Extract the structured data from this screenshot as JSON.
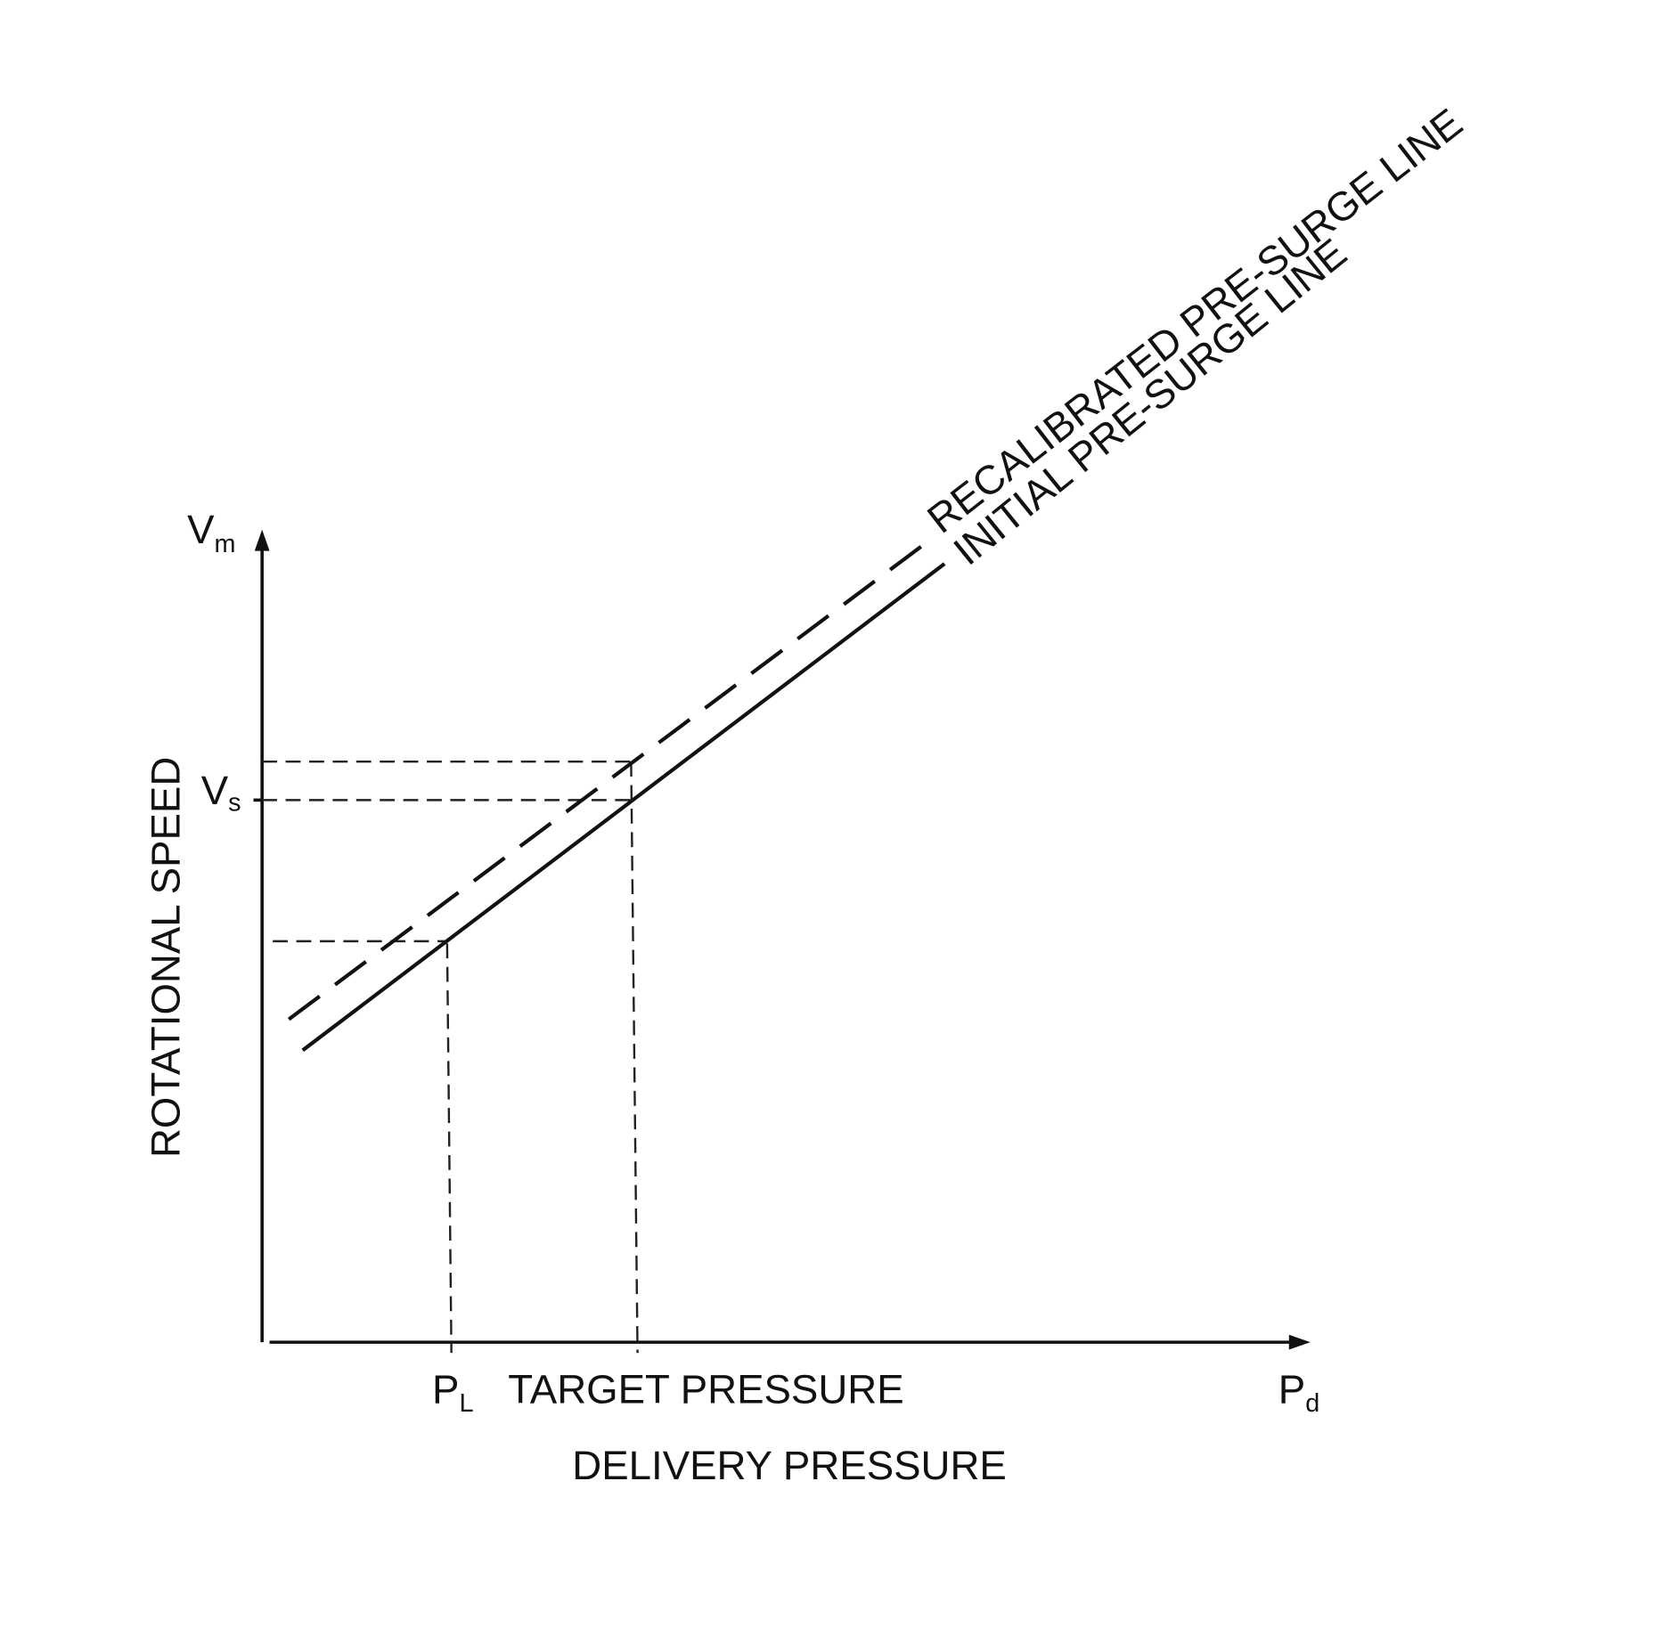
{
  "axes": {
    "y": {
      "symbol": {
        "main": "V",
        "sub": "m"
      },
      "label": "ROTATIONAL SPEED",
      "marker": {
        "main": "V",
        "sub": "s"
      }
    },
    "x": {
      "symbol": {
        "main": "P",
        "sub": "d"
      },
      "label": "DELIVERY PRESSURE",
      "marker": {
        "main": "P",
        "sub": "L"
      },
      "target": "TARGET PRESSURE"
    }
  },
  "lines": [
    {
      "label": "RECALIBRATED PRE-SURGE LINE"
    },
    {
      "label": "INITIAL PRE-SURGE LINE"
    }
  ]
}
